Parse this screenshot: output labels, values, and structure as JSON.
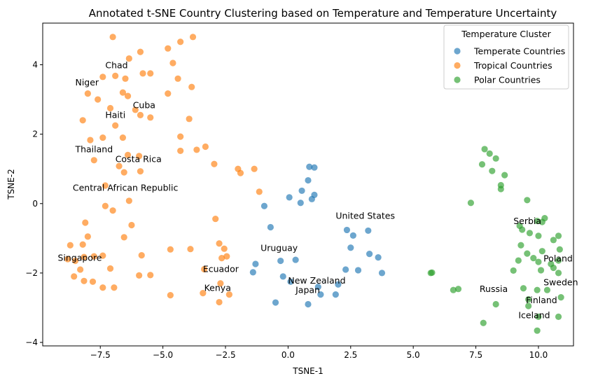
{
  "chart_data": {
    "type": "scatter",
    "title": "Annotated t-SNE Country Clustering based on Temperature and Temperature Uncertainty",
    "xlabel": "TSNE-1",
    "ylabel": "TSNE-2",
    "xlim": [
      -9.8,
      11.4
    ],
    "ylim": [
      -4.1,
      5.2
    ],
    "xticks": [
      -7.5,
      -5.0,
      -2.5,
      0.0,
      2.5,
      5.0,
      7.5,
      10.0
    ],
    "yticks": [
      -4,
      -2,
      0,
      2,
      4
    ],
    "xtick_labels": [
      "−7.5",
      "−5.0",
      "−2.5",
      "0.0",
      "2.5",
      "5.0",
      "7.5",
      "10.0"
    ],
    "ytick_labels": [
      "−4",
      "−2",
      "0",
      "2",
      "4"
    ],
    "grid": false,
    "legend": {
      "title": "Temperature Cluster",
      "placement": "top-right"
    },
    "series": [
      {
        "name": "Temperate Countries",
        "color": "#1f77b4",
        "points": [
          [
            0.85,
            1.06
          ],
          [
            1.05,
            1.04
          ],
          [
            0.8,
            0.67
          ],
          [
            0.55,
            0.37
          ],
          [
            1.05,
            0.25
          ],
          [
            0.95,
            0.13
          ],
          [
            0.05,
            0.18
          ],
          [
            0.5,
            0.02
          ],
          [
            -0.95,
            -0.07
          ],
          [
            -0.7,
            -0.68
          ],
          [
            2.35,
            -0.76
          ],
          [
            2.6,
            -0.92
          ],
          [
            3.2,
            -0.78
          ],
          [
            2.5,
            -1.27
          ],
          [
            3.25,
            -1.45
          ],
          [
            3.6,
            -1.55
          ],
          [
            -0.3,
            -1.65
          ],
          [
            0.3,
            -1.62
          ],
          [
            -1.3,
            -1.74
          ],
          [
            -1.4,
            -1.98
          ],
          [
            2.3,
            -1.9
          ],
          [
            2.8,
            -1.92
          ],
          [
            3.75,
            -2.0
          ],
          [
            -0.2,
            -2.1
          ],
          [
            0.1,
            -2.25
          ],
          [
            1.2,
            -2.4
          ],
          [
            2.0,
            -2.33
          ],
          [
            1.9,
            -2.62
          ],
          [
            1.3,
            -2.62
          ],
          [
            0.8,
            -2.9
          ],
          [
            -0.5,
            -2.85
          ]
        ]
      },
      {
        "name": "Tropical Countries",
        "color": "#ff7f0e",
        "points": [
          [
            -7.0,
            4.8
          ],
          [
            -3.8,
            4.8
          ],
          [
            -4.8,
            4.47
          ],
          [
            -4.3,
            4.66
          ],
          [
            -6.35,
            4.18
          ],
          [
            -5.9,
            4.37
          ],
          [
            -7.4,
            3.65
          ],
          [
            -6.9,
            3.68
          ],
          [
            -6.5,
            3.6
          ],
          [
            -5.8,
            3.75
          ],
          [
            -5.5,
            3.75
          ],
          [
            -4.6,
            4.05
          ],
          [
            -4.4,
            3.6
          ],
          [
            -8.0,
            3.17
          ],
          [
            -7.6,
            3.0
          ],
          [
            -6.6,
            3.2
          ],
          [
            -6.4,
            3.1
          ],
          [
            -4.8,
            3.17
          ],
          [
            -3.85,
            3.36
          ],
          [
            -7.1,
            2.75
          ],
          [
            -6.1,
            2.7
          ],
          [
            -5.9,
            2.55
          ],
          [
            -5.5,
            2.48
          ],
          [
            -8.2,
            2.4
          ],
          [
            -6.9,
            2.25
          ],
          [
            -3.95,
            2.44
          ],
          [
            -7.9,
            1.83
          ],
          [
            -7.4,
            1.9
          ],
          [
            -6.6,
            1.9
          ],
          [
            -4.3,
            1.93
          ],
          [
            -7.75,
            1.25
          ],
          [
            -6.4,
            1.4
          ],
          [
            -5.95,
            1.37
          ],
          [
            -4.3,
            1.52
          ],
          [
            -3.65,
            1.55
          ],
          [
            -3.3,
            1.64
          ],
          [
            -6.75,
            1.08
          ],
          [
            -6.55,
            0.9
          ],
          [
            -5.9,
            0.93
          ],
          [
            -2.95,
            1.14
          ],
          [
            -2.0,
            1.0
          ],
          [
            -1.35,
            1.0
          ],
          [
            -1.9,
            0.88
          ],
          [
            -7.3,
            0.52
          ],
          [
            -1.15,
            0.34
          ],
          [
            -6.35,
            0.08
          ],
          [
            -7.3,
            -0.07
          ],
          [
            -7.0,
            -0.2
          ],
          [
            -2.9,
            -0.44
          ],
          [
            -8.1,
            -0.55
          ],
          [
            -6.25,
            -0.62
          ],
          [
            -8.0,
            -0.95
          ],
          [
            -6.55,
            -0.97
          ],
          [
            -8.7,
            -1.2
          ],
          [
            -8.2,
            -1.18
          ],
          [
            -4.7,
            -1.32
          ],
          [
            -3.9,
            -1.31
          ],
          [
            -2.75,
            -1.15
          ],
          [
            -2.55,
            -1.3
          ],
          [
            -7.4,
            -1.5
          ],
          [
            -7.75,
            -1.52
          ],
          [
            -8.15,
            -1.54
          ],
          [
            -5.85,
            -1.49
          ],
          [
            -8.8,
            -1.6
          ],
          [
            -8.5,
            -1.65
          ],
          [
            -2.45,
            -1.52
          ],
          [
            -2.65,
            -1.57
          ],
          [
            -3.35,
            -1.89
          ],
          [
            -7.1,
            -1.87
          ],
          [
            -8.3,
            -1.9
          ],
          [
            -8.55,
            -2.1
          ],
          [
            -5.95,
            -2.07
          ],
          [
            -5.5,
            -2.06
          ],
          [
            -8.15,
            -2.23
          ],
          [
            -7.8,
            -2.25
          ],
          [
            -2.7,
            -2.3
          ],
          [
            -7.4,
            -2.42
          ],
          [
            -6.95,
            -2.42
          ],
          [
            -3.4,
            -2.58
          ],
          [
            -4.7,
            -2.64
          ],
          [
            -2.35,
            -2.62
          ],
          [
            -2.75,
            -2.84
          ]
        ]
      },
      {
        "name": "Polar Countries",
        "color": "#2ca02c",
        "points": [
          [
            7.85,
            1.57
          ],
          [
            8.05,
            1.44
          ],
          [
            8.3,
            1.3
          ],
          [
            7.75,
            1.13
          ],
          [
            8.15,
            0.94
          ],
          [
            8.65,
            0.82
          ],
          [
            8.5,
            0.53
          ],
          [
            8.5,
            0.42
          ],
          [
            7.3,
            0.02
          ],
          [
            9.55,
            0.1
          ],
          [
            10.25,
            -0.42
          ],
          [
            9.95,
            -0.5
          ],
          [
            10.15,
            -0.53
          ],
          [
            9.25,
            -0.64
          ],
          [
            9.35,
            -0.75
          ],
          [
            9.65,
            -0.85
          ],
          [
            10.0,
            -0.93
          ],
          [
            10.8,
            -0.93
          ],
          [
            10.6,
            -1.05
          ],
          [
            9.3,
            -1.2
          ],
          [
            10.15,
            -1.37
          ],
          [
            10.85,
            -1.32
          ],
          [
            9.55,
            -1.44
          ],
          [
            9.8,
            -1.57
          ],
          [
            10.0,
            -1.68
          ],
          [
            10.5,
            -1.74
          ],
          [
            10.8,
            -1.64
          ],
          [
            9.2,
            -1.64
          ],
          [
            9.0,
            -1.93
          ],
          [
            10.1,
            -1.92
          ],
          [
            10.6,
            -1.85
          ],
          [
            10.8,
            -2.0
          ],
          [
            5.75,
            -1.99
          ],
          [
            5.7,
            -2.0
          ],
          [
            9.4,
            -2.44
          ],
          [
            6.6,
            -2.49
          ],
          [
            6.8,
            -2.46
          ],
          [
            9.95,
            -2.49
          ],
          [
            10.35,
            -2.49
          ],
          [
            10.9,
            -2.7
          ],
          [
            9.6,
            -2.76
          ],
          [
            8.3,
            -2.9
          ],
          [
            9.6,
            -2.95
          ],
          [
            10.0,
            -3.26
          ],
          [
            10.8,
            -3.26
          ],
          [
            7.8,
            -3.44
          ],
          [
            9.95,
            -3.66
          ]
        ]
      }
    ],
    "annotations": [
      {
        "text": "Chad",
        "x": -7.3,
        "y": 3.9
      },
      {
        "text": "Niger",
        "x": -8.5,
        "y": 3.4
      },
      {
        "text": "Cuba",
        "x": -6.2,
        "y": 2.75
      },
      {
        "text": "Haiti",
        "x": -7.3,
        "y": 2.47
      },
      {
        "text": "Thailand",
        "x": -8.5,
        "y": 1.48
      },
      {
        "text": "Costa Rica",
        "x": -6.9,
        "y": 1.2
      },
      {
        "text": "Central African Republic",
        "x": -8.6,
        "y": 0.37
      },
      {
        "text": "Singapore",
        "x": -9.2,
        "y": -1.65
      },
      {
        "text": "Ecuador",
        "x": -3.4,
        "y": -1.97
      },
      {
        "text": "Kenya",
        "x": -3.35,
        "y": -2.52
      },
      {
        "text": "Uruguay",
        "x": -1.1,
        "y": -1.37
      },
      {
        "text": "New Zealand",
        "x": 0.0,
        "y": -2.3
      },
      {
        "text": "Japan",
        "x": 0.3,
        "y": -2.58
      },
      {
        "text": "United States",
        "x": 1.9,
        "y": -0.44
      },
      {
        "text": "Serbia",
        "x": 9.0,
        "y": -0.59
      },
      {
        "text": "Poland",
        "x": 10.2,
        "y": -1.67
      },
      {
        "text": "Sweden",
        "x": 10.2,
        "y": -2.35
      },
      {
        "text": "Russia",
        "x": 7.65,
        "y": -2.55
      },
      {
        "text": "Finland",
        "x": 9.5,
        "y": -2.87
      },
      {
        "text": "Iceland",
        "x": 9.2,
        "y": -3.3
      }
    ]
  }
}
